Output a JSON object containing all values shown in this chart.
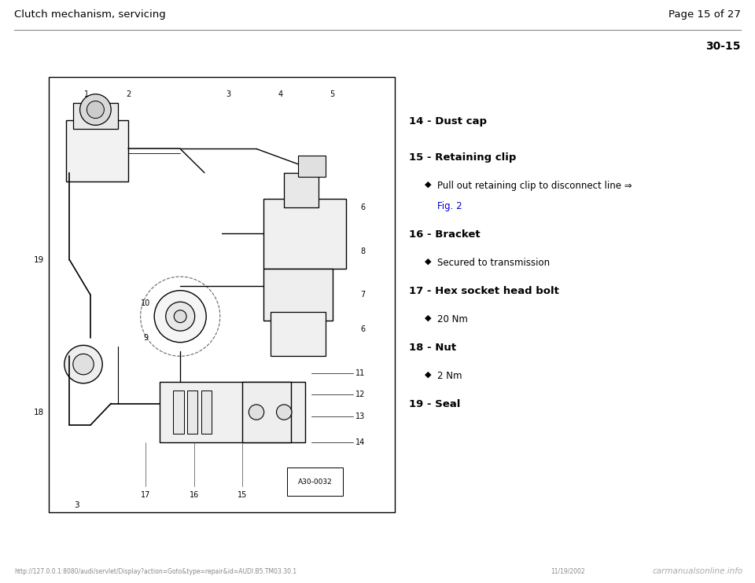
{
  "bg_color": "#ffffff",
  "header_left": "Clutch mechanism, servicing",
  "header_right": "Page 15 of 27",
  "section_number": "30-15",
  "items": [
    {
      "number": "14",
      "label": "Dust cap",
      "sub_items": []
    },
    {
      "number": "15",
      "label": "Retaining clip",
      "sub_items": [
        {
          "text": "Pull out retaining clip to disconnect line ⇒",
          "link": "Fig. 2",
          "link_color": "#0000cc"
        }
      ]
    },
    {
      "number": "16",
      "label": "Bracket",
      "sub_items": [
        {
          "text": "Secured to transmission",
          "link": null,
          "link_color": null
        }
      ]
    },
    {
      "number": "17",
      "label": "Hex socket head bolt",
      "sub_items": [
        {
          "text": "20 Nm",
          "link": null,
          "link_color": null
        }
      ]
    },
    {
      "number": "18",
      "label": "Nut",
      "sub_items": [
        {
          "text": "2 Nm",
          "link": null,
          "link_color": null
        }
      ]
    },
    {
      "number": "19",
      "label": "Seal",
      "sub_items": []
    }
  ],
  "footer_url": "http://127.0.0.1:8080/audi/servlet/Display?action=Goto&type=repair&id=AUDI.B5.TM03.30.1",
  "footer_date": "11/19/2002",
  "footer_brand": "carmanualsonline.info",
  "diamond": "◆",
  "image_label": "A30-0032",
  "font_family": "DejaVu Sans"
}
